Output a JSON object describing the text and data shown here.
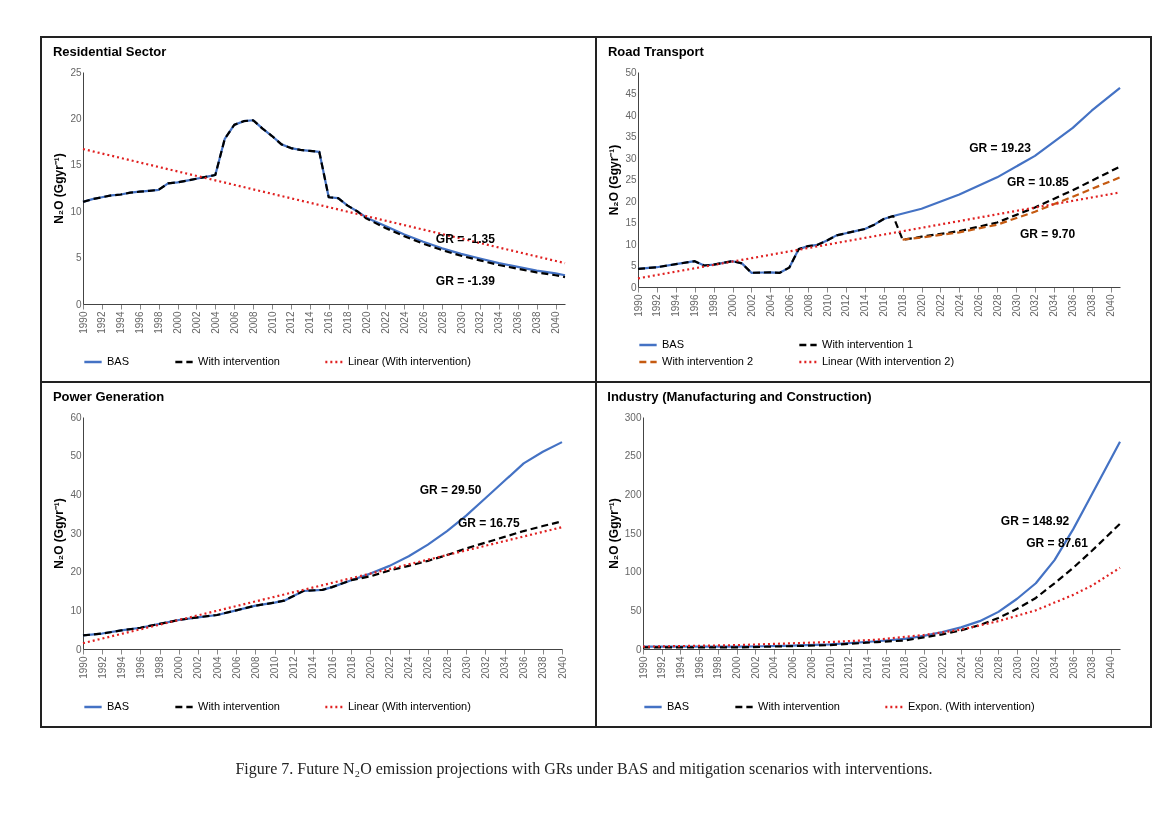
{
  "chart_data": [
    {
      "type": "line",
      "title": "Residential Sector",
      "ylabel": "N₂O (Ggyr⁻¹)",
      "xlim": [
        1990,
        2041
      ],
      "xticks": [
        1990,
        1992,
        1994,
        1996,
        1998,
        2000,
        2002,
        2004,
        2006,
        2008,
        2010,
        2012,
        2014,
        2016,
        2018,
        2020,
        2022,
        2024,
        2026,
        2028,
        2030,
        2032,
        2034,
        2036,
        2038,
        2040
      ],
      "ylim": [
        0,
        25
      ],
      "yticks": [
        0,
        5,
        10,
        15,
        20,
        25
      ],
      "legend": "bottom",
      "series": [
        {
          "name": "BAS",
          "color": "#4472c4",
          "line_style": "solid",
          "x": [
            1990,
            1991,
            1992,
            1993,
            1994,
            1995,
            1996,
            1997,
            1998,
            1999,
            2000,
            2001,
            2002,
            2003,
            2004,
            2005,
            2006,
            2007,
            2008,
            2009,
            2010,
            2011,
            2012,
            2013,
            2014,
            2015,
            2016,
            2017,
            2018,
            2019,
            2020,
            2022,
            2024,
            2026,
            2028,
            2030,
            2032,
            2034,
            2036,
            2038,
            2040,
            2041
          ],
          "values": [
            11,
            11.3,
            11.5,
            11.7,
            11.8,
            12,
            12.1,
            12.2,
            12.3,
            13,
            13.1,
            13.3,
            13.5,
            13.7,
            13.9,
            17.8,
            19.3,
            19.7,
            19.8,
            18.9,
            18.1,
            17.2,
            16.8,
            16.6,
            16.5,
            16.4,
            11.5,
            11.4,
            10.6,
            10,
            9.3,
            8.4,
            7.5,
            6.7,
            6,
            5.4,
            4.9,
            4.4,
            4,
            3.6,
            3.3,
            3.1
          ]
        },
        {
          "name": "With intervention",
          "color": "#000000",
          "line_style": "dashed",
          "x": [
            1990,
            1991,
            1992,
            1993,
            1994,
            1995,
            1996,
            1997,
            1998,
            1999,
            2000,
            2001,
            2002,
            2003,
            2004,
            2005,
            2006,
            2007,
            2008,
            2009,
            2010,
            2011,
            2012,
            2013,
            2014,
            2015,
            2016,
            2017,
            2018,
            2019,
            2020,
            2022,
            2024,
            2026,
            2028,
            2030,
            2032,
            2034,
            2036,
            2038,
            2040,
            2041
          ],
          "values": [
            11,
            11.3,
            11.5,
            11.7,
            11.8,
            12,
            12.1,
            12.2,
            12.3,
            13,
            13.1,
            13.3,
            13.5,
            13.7,
            13.9,
            17.8,
            19.3,
            19.7,
            19.8,
            18.9,
            18.1,
            17.2,
            16.8,
            16.6,
            16.5,
            16.4,
            11.5,
            11.4,
            10.6,
            10,
            9.2,
            8.2,
            7.3,
            6.5,
            5.8,
            5.2,
            4.7,
            4.2,
            3.8,
            3.4,
            3.1,
            2.9
          ]
        },
        {
          "name": "Linear (With intervention)",
          "color": "#e02020",
          "line_style": "dotted",
          "x": [
            1990,
            2041
          ],
          "values": [
            16.7,
            4.4
          ]
        }
      ],
      "annotations": [
        {
          "text": "GR = -1.35",
          "x": 2034,
          "y": 6.1
        },
        {
          "text": "GR = -1.39",
          "x": 2034,
          "y": 4.2
        }
      ]
    },
    {
      "type": "line",
      "title": "Road Transport",
      "ylabel": "N₂O (Ggyr⁻¹)",
      "xlim": [
        1990,
        2041
      ],
      "xticks": [
        1990,
        1992,
        1994,
        1996,
        1998,
        2000,
        2002,
        2004,
        2006,
        2008,
        2010,
        2012,
        2014,
        2016,
        2018,
        2020,
        2022,
        2024,
        2026,
        2028,
        2030,
        2032,
        2034,
        2036,
        2038,
        2040
      ],
      "ylim": [
        0,
        50
      ],
      "yticks": [
        0,
        5,
        10,
        15,
        20,
        25,
        30,
        35,
        40,
        45,
        50
      ],
      "legend": "bottom",
      "series": [
        {
          "name": "BAS",
          "color": "#4472c4",
          "line_style": "solid",
          "x": [
            1990,
            1992,
            1994,
            1996,
            1997,
            1998,
            2000,
            2001,
            2002,
            2004,
            2005,
            2006,
            2007,
            2008,
            2009,
            2010,
            2011,
            2012,
            2013,
            2014,
            2015,
            2016,
            2017,
            2020,
            2024,
            2028,
            2032,
            2036,
            2038,
            2041
          ],
          "values": [
            4.2,
            4.6,
            5.3,
            6,
            5,
            5.2,
            6,
            5.5,
            3.3,
            3.4,
            3.3,
            4.5,
            8.8,
            9.5,
            9.8,
            10.8,
            12,
            12.5,
            13,
            13.5,
            14.5,
            15.8,
            16.5,
            18.2,
            21.5,
            25.5,
            30.5,
            37,
            41,
            46.3
          ]
        },
        {
          "name": "With intervention 1",
          "color": "#000000",
          "line_style": "dashed",
          "x": [
            1990,
            1992,
            1994,
            1996,
            1997,
            1998,
            2000,
            2001,
            2002,
            2004,
            2005,
            2006,
            2007,
            2008,
            2009,
            2010,
            2011,
            2012,
            2013,
            2014,
            2015,
            2016,
            2017,
            2018,
            2019,
            2020,
            2024,
            2028,
            2032,
            2036,
            2041
          ],
          "values": [
            4.2,
            4.6,
            5.3,
            6,
            5,
            5.2,
            6,
            5.5,
            3.3,
            3.4,
            3.3,
            4.5,
            8.8,
            9.5,
            9.8,
            10.8,
            12,
            12.5,
            13,
            13.5,
            14.5,
            15.8,
            16.5,
            11,
            11.3,
            11.7,
            13,
            15,
            18.5,
            22.5,
            28
          ]
        },
        {
          "name": "With intervention 2",
          "color": "#c55a11",
          "line_style": "dashed",
          "x": [
            2018,
            2020,
            2024,
            2028,
            2032,
            2036,
            2041
          ],
          "values": [
            11,
            11.5,
            12.7,
            14.5,
            17.5,
            21,
            25.5
          ]
        },
        {
          "name": "Linear (With intervention 2)",
          "color": "#e02020",
          "line_style": "dotted",
          "x": [
            1990,
            2041
          ],
          "values": [
            2,
            22
          ]
        }
      ],
      "annotations": [
        {
          "text": "GR = 19.23",
          "x": 2032,
          "y": 30.5
        },
        {
          "text": "GR = 10.85",
          "x": 2036,
          "y": 22.5
        },
        {
          "text": "GR = 9.70",
          "x": 2030,
          "y": 16
        }
      ]
    },
    {
      "type": "line",
      "title": "Power Generation",
      "ylabel": "N₂O (Ggyr⁻¹)",
      "xlim": [
        1990,
        2040
      ],
      "xticks": [
        1990,
        1992,
        1994,
        1996,
        1998,
        2000,
        2002,
        2004,
        2006,
        2008,
        2010,
        2012,
        2014,
        2016,
        2018,
        2020,
        2022,
        2024,
        2026,
        2028,
        2030,
        2032,
        2034,
        2036,
        2038,
        2040
      ],
      "ylim": [
        0,
        60
      ],
      "yticks": [
        0,
        10,
        20,
        30,
        40,
        50,
        60
      ],
      "legend": "bottom",
      "series": [
        {
          "name": "BAS",
          "color": "#4472c4",
          "line_style": "solid",
          "x": [
            1990,
            1992,
            1994,
            1996,
            1998,
            2000,
            2002,
            2004,
            2006,
            2008,
            2010,
            2011,
            2013,
            2015,
            2016,
            2018,
            2020,
            2022,
            2024,
            2026,
            2028,
            2030,
            2032,
            2034,
            2036,
            2038,
            2040
          ],
          "values": [
            3.5,
            4,
            4.8,
            5.5,
            6.5,
            7.5,
            8.2,
            8.8,
            10,
            11.2,
            12,
            12.5,
            15,
            15.3,
            16,
            17.8,
            19.5,
            21.5,
            24,
            27,
            30.5,
            34.5,
            39,
            43.5,
            48,
            51,
            53.5
          ]
        },
        {
          "name": "With intervention",
          "color": "#000000",
          "line_style": "dashed",
          "x": [
            1990,
            1992,
            1994,
            1996,
            1998,
            2000,
            2002,
            2004,
            2006,
            2008,
            2010,
            2011,
            2013,
            2015,
            2016,
            2018,
            2020,
            2022,
            2024,
            2026,
            2028,
            2030,
            2032,
            2034,
            2036,
            2038,
            2040
          ],
          "values": [
            3.5,
            4,
            4.8,
            5.5,
            6.5,
            7.5,
            8.2,
            8.8,
            10,
            11.2,
            12,
            12.5,
            15,
            15.3,
            16,
            17.8,
            18.8,
            20.3,
            21.5,
            22.8,
            24.3,
            26,
            27.5,
            29,
            30.5,
            31.8,
            33
          ]
        },
        {
          "name": "Linear (With intervention)",
          "color": "#e02020",
          "line_style": "dotted",
          "x": [
            1990,
            2040
          ],
          "values": [
            1.5,
            31.5
          ]
        }
      ],
      "annotations": [
        {
          "text": "GR = 29.50",
          "x": 2032,
          "y": 39
        },
        {
          "text": "GR = 16.75",
          "x": 2036,
          "y": 30.5
        }
      ]
    },
    {
      "type": "line",
      "title": "Industry (Manufacturing and Construction)",
      "ylabel": "N₂O (Ggyr⁻¹)",
      "xlim": [
        1990,
        2041
      ],
      "xticks": [
        1990,
        1992,
        1994,
        1996,
        1998,
        2000,
        2002,
        2004,
        2006,
        2008,
        2010,
        2012,
        2014,
        2016,
        2018,
        2020,
        2022,
        2024,
        2026,
        2028,
        2030,
        2032,
        2034,
        2036,
        2038,
        2040
      ],
      "ylim": [
        0,
        300
      ],
      "yticks": [
        0,
        50,
        100,
        150,
        200,
        250,
        300
      ],
      "legend": "bottom",
      "series": [
        {
          "name": "BAS",
          "color": "#4472c4",
          "line_style": "solid",
          "x": [
            1990,
            2000,
            2005,
            2010,
            2015,
            2018,
            2020,
            2022,
            2024,
            2026,
            2028,
            2030,
            2032,
            2034,
            2036,
            2038,
            2041
          ],
          "values": [
            3,
            3,
            4,
            6,
            10,
            13,
            17,
            22,
            28,
            36,
            48,
            65,
            85,
            115,
            155,
            200,
            268
          ]
        },
        {
          "name": "With intervention",
          "color": "#000000",
          "line_style": "dashed",
          "x": [
            1990,
            2000,
            2010,
            2015,
            2018,
            2020,
            2022,
            2024,
            2026,
            2028,
            2030,
            2032,
            2034,
            2036,
            2038,
            2041
          ],
          "values": [
            2,
            2,
            5,
            9,
            11,
            15,
            19,
            24,
            31,
            40,
            52,
            66,
            85,
            105,
            127,
            162
          ]
        },
        {
          "name": "Expon. (With intervention)",
          "color": "#e02020",
          "line_style": "dotted",
          "x": [
            1990,
            2000,
            2010,
            2015,
            2020,
            2024,
            2028,
            2032,
            2036,
            2038,
            2041
          ],
          "values": [
            3,
            5,
            9,
            12,
            18,
            25,
            36,
            50,
            70,
            82,
            105
          ]
        }
      ],
      "annotations": [
        {
          "text": "GR = 148.92",
          "x": 2036,
          "y": 155
        },
        {
          "text": "GR = 87.61",
          "x": 2038,
          "y": 127
        },
        "Figure 7. Future N₂O emission projections with GRs under BAS and mitigation scenarios with interventions."
      ]
    }
  ]
}
